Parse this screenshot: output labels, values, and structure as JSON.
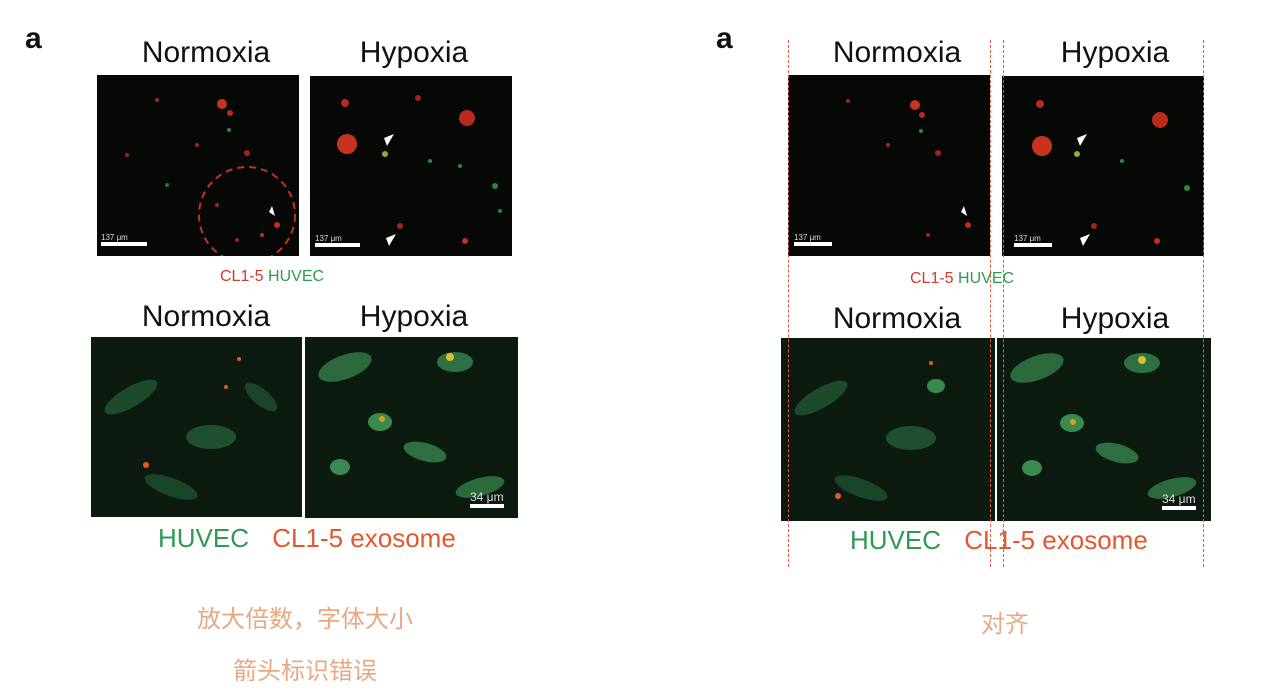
{
  "left": {
    "panel_letter": "a",
    "top_normoxia": "Normoxia",
    "top_hypoxia": "Hypoxia",
    "scale_top": "137 μm",
    "legend_top": {
      "red": "CL1-5",
      "green": "HUVEC"
    },
    "bottom_normoxia": "Normoxia",
    "bottom_hypoxia": "Hypoxia",
    "scale_bottom": "34 μm",
    "legend_bottom": {
      "green": "HUVEC",
      "red": "CL1-5 exosome"
    }
  },
  "right": {
    "panel_letter": "a",
    "top_normoxia": "Normoxia",
    "top_hypoxia": "Hypoxia",
    "scale_top": "137 μm",
    "legend_top": {
      "red": "CL1-5",
      "green": "HUVEC"
    },
    "bottom_normoxia": "Normoxia",
    "bottom_hypoxia": "Hypoxia",
    "scale_bottom": "34 μm",
    "legend_bottom": {
      "green": "HUVEC",
      "red": "CL1-5 exosome"
    }
  },
  "notes": {
    "left_line1": "放大倍数，字体大小",
    "left_line2": "箭头标识错误",
    "right": "对齐"
  },
  "colors": {
    "red_label": "#d23a2a",
    "green_label": "#2f9a52",
    "note": "#e8a882",
    "guide_line": "#e05a4a"
  }
}
